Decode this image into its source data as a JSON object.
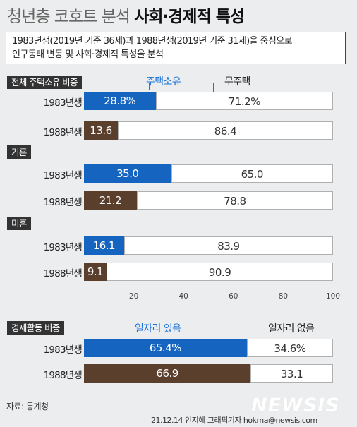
{
  "title": {
    "light": "청년층 코호트 분석",
    "bold": "사회·경제적 특성"
  },
  "description": [
    "1983년생(2019년 기준 36세)과 1988년생(2019년 기준 31세)을 중심으로",
    "인구동태 변동 및 사회·경제적 특성을 분석"
  ],
  "source": "자료: 통계청",
  "credit": "21.12.14 안지혜 그래픽기자 hokma@newsis.com",
  "watermark": "NEWSIS",
  "colors": {
    "blue": "#1565c0",
    "brown": "#5a3f2d",
    "rest": "#ffffff",
    "legend_blue": "#1e73d8"
  },
  "chart_data": [
    {
      "type": "bar",
      "stacked": true,
      "title": "전체 주택소유 비중",
      "categories": [
        "1983년생",
        "1988년생"
      ],
      "series": [
        {
          "name": "주택소유",
          "values": [
            28.8,
            13.6
          ],
          "labels": [
            "28.8%",
            "13.6"
          ]
        },
        {
          "name": "무주택",
          "values": [
            71.2,
            86.4
          ],
          "labels": [
            "71.2%",
            "86.4"
          ]
        }
      ],
      "xlim": [
        0,
        100
      ]
    },
    {
      "type": "bar",
      "stacked": true,
      "title": "기혼",
      "categories": [
        "1983년생",
        "1988년생"
      ],
      "series": [
        {
          "values": [
            35.0,
            21.2
          ],
          "labels": [
            "35.0",
            "21.2"
          ]
        },
        {
          "values": [
            65.0,
            78.8
          ],
          "labels": [
            "65.0",
            "78.8"
          ]
        }
      ],
      "xlim": [
        0,
        100
      ]
    },
    {
      "type": "bar",
      "stacked": true,
      "title": "미혼",
      "categories": [
        "1983년생",
        "1988년생"
      ],
      "series": [
        {
          "values": [
            16.1,
            9.1
          ],
          "labels": [
            "16.1",
            "9.1"
          ]
        },
        {
          "values": [
            83.9,
            90.9
          ],
          "labels": [
            "83.9",
            "90.9"
          ]
        }
      ],
      "xlim": [
        0,
        100
      ],
      "xticks": [
        20,
        40,
        60,
        80,
        100
      ],
      "xtick_labels": [
        "20",
        "40",
        "60",
        "80",
        "100"
      ]
    },
    {
      "type": "bar",
      "stacked": true,
      "title": "경제활동 비중",
      "categories": [
        "1983년생",
        "1988년생"
      ],
      "series": [
        {
          "name": "일자리 있음",
          "values": [
            65.4,
            66.9
          ],
          "labels": [
            "65.4%",
            "66.9"
          ]
        },
        {
          "name": "일자리 없음",
          "values": [
            34.6,
            33.1
          ],
          "labels": [
            "34.6%",
            "33.1"
          ]
        }
      ],
      "xlim": [
        0,
        100
      ]
    }
  ]
}
